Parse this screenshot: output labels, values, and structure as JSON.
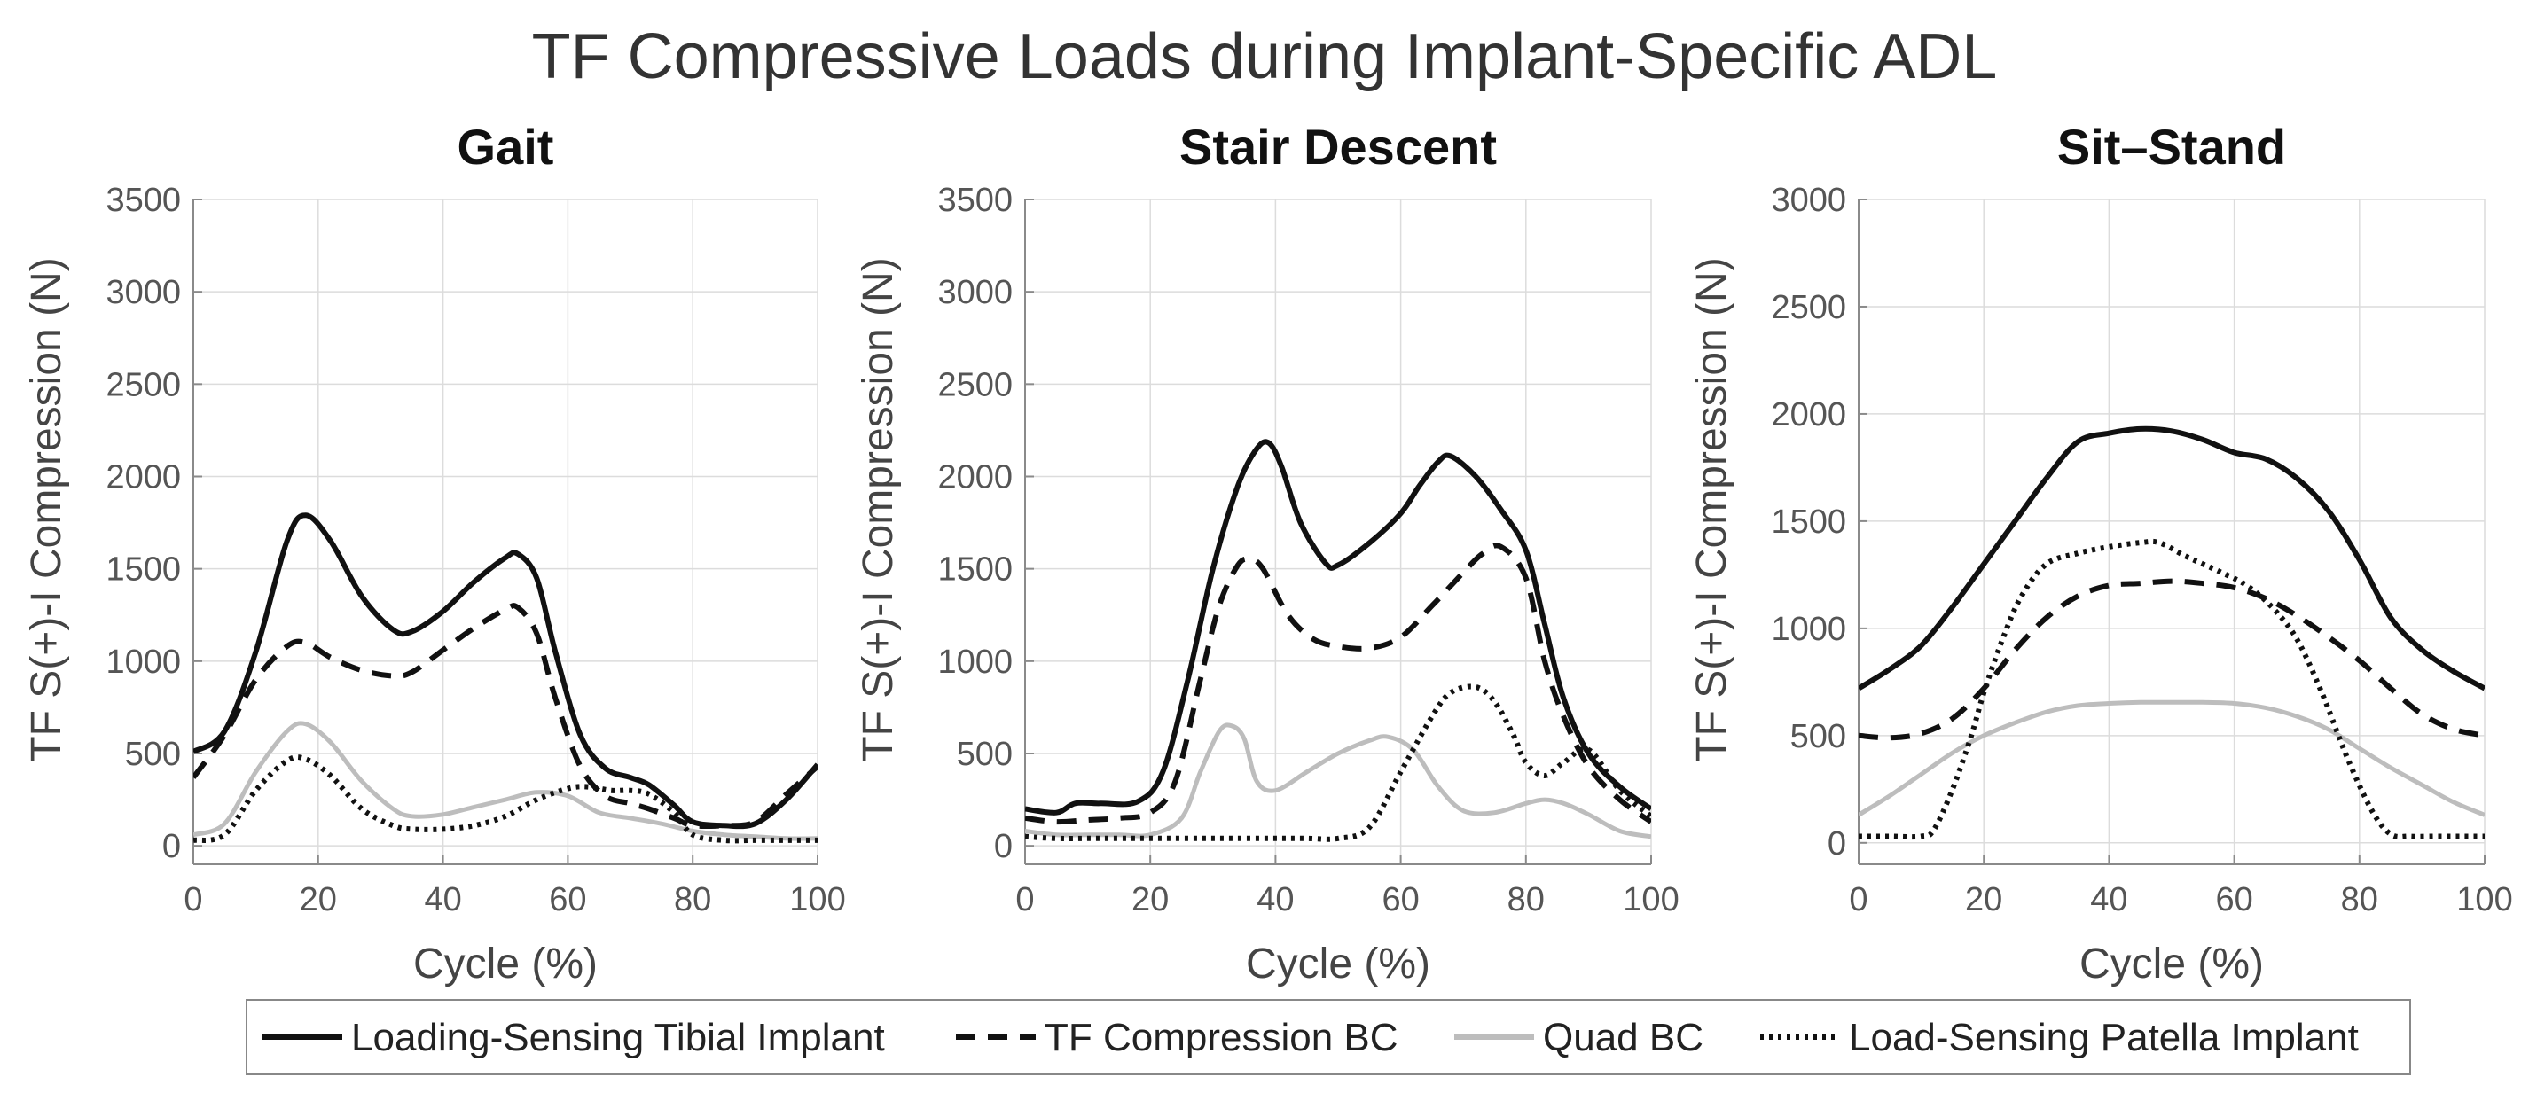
{
  "title": "TF Compressive Loads during Implant-Specific ADL",
  "legend": [
    {
      "label": "Loading-Sensing Tibial Implant",
      "style": "solid",
      "color": "#111111"
    },
    {
      "label": "TF Compression BC",
      "style": "dashed",
      "color": "#111111"
    },
    {
      "label": "Quad BC",
      "style": "solid",
      "color": "#bdbdbd"
    },
    {
      "label": "Load-Sensing Patella Implant",
      "style": "dotted",
      "color": "#111111"
    }
  ],
  "chart_data": [
    {
      "type": "line",
      "title": "Gait",
      "xlabel": "Cycle (%)",
      "ylabel": "TF S(+)-I Compression (N)",
      "xlim": [
        0,
        100
      ],
      "ylim": [
        -100,
        3500
      ],
      "xticks": [
        0,
        20,
        40,
        60,
        80,
        100
      ],
      "yticks": [
        0,
        500,
        1000,
        1500,
        2000,
        2500,
        3000,
        3500
      ],
      "grid": true,
      "series": [
        {
          "name": "Loading-Sensing Tibial Implant",
          "x": [
            0,
            5,
            10,
            15,
            18,
            22,
            27,
            32,
            35,
            40,
            45,
            50,
            52,
            55,
            58,
            62,
            66,
            70,
            73,
            77,
            80,
            85,
            90,
            95,
            100
          ],
          "y": [
            510,
            620,
            1050,
            1650,
            1790,
            1650,
            1350,
            1170,
            1160,
            1270,
            1430,
            1560,
            1580,
            1450,
            1050,
            600,
            420,
            370,
            330,
            220,
            130,
            110,
            120,
            250,
            440
          ]
        },
        {
          "name": "TF Compression BC",
          "x": [
            0,
            5,
            10,
            15,
            18,
            22,
            27,
            32,
            35,
            40,
            45,
            50,
            52,
            55,
            58,
            62,
            66,
            70,
            73,
            77,
            80,
            85,
            90,
            95,
            100
          ],
          "y": [
            370,
            600,
            900,
            1080,
            1100,
            1020,
            950,
            920,
            940,
            1060,
            1180,
            1280,
            1290,
            1150,
            800,
            430,
            270,
            230,
            200,
            150,
            110,
            110,
            130,
            280,
            430
          ]
        },
        {
          "name": "Quad BC",
          "x": [
            0,
            5,
            10,
            15,
            18,
            22,
            27,
            32,
            35,
            40,
            45,
            50,
            55,
            60,
            65,
            70,
            75,
            80,
            85,
            90,
            95,
            100
          ],
          "y": [
            60,
            120,
            400,
            620,
            660,
            560,
            350,
            200,
            160,
            170,
            210,
            250,
            290,
            270,
            180,
            150,
            120,
            80,
            60,
            50,
            40,
            40
          ]
        },
        {
          "name": "Load-Sensing Patella Implant",
          "x": [
            0,
            5,
            10,
            15,
            18,
            22,
            27,
            32,
            35,
            40,
            45,
            50,
            55,
            60,
            63,
            67,
            70,
            73,
            77,
            80,
            85,
            90,
            95,
            100
          ],
          "y": [
            30,
            60,
            300,
            460,
            470,
            380,
            200,
            110,
            90,
            90,
            110,
            160,
            250,
            310,
            320,
            300,
            300,
            280,
            180,
            60,
            30,
            30,
            30,
            30
          ]
        }
      ]
    },
    {
      "type": "line",
      "title": "Stair Descent",
      "xlabel": "Cycle (%)",
      "ylabel": "TF S(+)-I Compression (N)",
      "xlim": [
        0,
        100
      ],
      "ylim": [
        -100,
        3500
      ],
      "xticks": [
        0,
        20,
        40,
        60,
        80,
        100
      ],
      "yticks": [
        0,
        500,
        1000,
        1500,
        2000,
        2500,
        3000,
        3500
      ],
      "grid": true,
      "series": [
        {
          "name": "Loading-Sensing Tibial Implant",
          "x": [
            0,
            5,
            8,
            12,
            18,
            22,
            26,
            30,
            34,
            37,
            39,
            41,
            44,
            48,
            50,
            55,
            60,
            63,
            66,
            68,
            72,
            76,
            80,
            83,
            86,
            90,
            95,
            100
          ],
          "y": [
            200,
            180,
            230,
            230,
            240,
            400,
            900,
            1500,
            1950,
            2150,
            2180,
            2050,
            1750,
            1530,
            1520,
            1640,
            1800,
            1950,
            2080,
            2110,
            2000,
            1820,
            1600,
            1200,
            800,
            500,
            320,
            200
          ]
        },
        {
          "name": "TF Compression BC",
          "x": [
            0,
            5,
            10,
            15,
            20,
            24,
            28,
            31,
            34,
            36,
            38,
            42,
            46,
            50,
            55,
            60,
            65,
            70,
            73,
            76,
            80,
            83,
            86,
            90,
            95,
            100
          ],
          "y": [
            150,
            130,
            140,
            150,
            180,
            350,
            900,
            1300,
            1520,
            1550,
            1500,
            1250,
            1120,
            1080,
            1070,
            1130,
            1300,
            1480,
            1580,
            1620,
            1450,
            1000,
            700,
            430,
            250,
            130
          ]
        },
        {
          "name": "Quad BC",
          "x": [
            0,
            5,
            10,
            15,
            20,
            25,
            28,
            31,
            33,
            35,
            37,
            40,
            45,
            50,
            55,
            58,
            62,
            66,
            70,
            75,
            80,
            83,
            86,
            90,
            95,
            100
          ],
          "y": [
            80,
            60,
            60,
            60,
            60,
            150,
            400,
            620,
            650,
            580,
            350,
            300,
            400,
            500,
            570,
            590,
            520,
            320,
            190,
            180,
            230,
            250,
            230,
            170,
            80,
            50
          ]
        },
        {
          "name": "Load-Sensing Patella Implant",
          "x": [
            0,
            5,
            10,
            15,
            20,
            25,
            30,
            35,
            40,
            45,
            50,
            55,
            60,
            65,
            68,
            72,
            75,
            78,
            80,
            83,
            86,
            90,
            95,
            100
          ],
          "y": [
            50,
            40,
            40,
            40,
            40,
            40,
            40,
            40,
            40,
            40,
            40,
            100,
            400,
            700,
            830,
            860,
            780,
            600,
            450,
            380,
            450,
            520,
            300,
            160
          ]
        }
      ]
    },
    {
      "type": "line",
      "title": "Sit–Stand",
      "xlabel": "Cycle (%)",
      "ylabel": "TF S(+)-I Compression (N)",
      "xlim": [
        0,
        100
      ],
      "ylim": [
        -100,
        3000
      ],
      "xticks": [
        0,
        20,
        40,
        60,
        80,
        100
      ],
      "yticks": [
        0,
        500,
        1000,
        1500,
        2000,
        2500,
        3000
      ],
      "grid": true,
      "series": [
        {
          "name": "Loading-Sensing Tibial Implant",
          "x": [
            0,
            5,
            10,
            15,
            20,
            25,
            30,
            35,
            40,
            45,
            50,
            55,
            60,
            65,
            70,
            75,
            80,
            85,
            90,
            95,
            100
          ],
          "y": [
            720,
            810,
            920,
            1100,
            1300,
            1500,
            1700,
            1870,
            1910,
            1930,
            1920,
            1880,
            1820,
            1790,
            1700,
            1550,
            1320,
            1050,
            900,
            800,
            720
          ]
        },
        {
          "name": "TF Compression BC",
          "x": [
            0,
            5,
            10,
            15,
            20,
            25,
            30,
            35,
            40,
            45,
            50,
            55,
            60,
            65,
            70,
            75,
            80,
            85,
            90,
            95,
            100
          ],
          "y": [
            500,
            490,
            510,
            580,
            720,
            900,
            1050,
            1150,
            1200,
            1210,
            1220,
            1210,
            1190,
            1140,
            1060,
            960,
            850,
            720,
            600,
            530,
            500
          ]
        },
        {
          "name": "Quad BC",
          "x": [
            0,
            5,
            10,
            15,
            20,
            25,
            30,
            35,
            40,
            45,
            50,
            55,
            60,
            65,
            70,
            75,
            80,
            85,
            90,
            95,
            100
          ],
          "y": [
            130,
            220,
            320,
            420,
            500,
            560,
            610,
            640,
            650,
            655,
            655,
            655,
            650,
            630,
            590,
            530,
            440,
            350,
            270,
            190,
            130
          ]
        },
        {
          "name": "Load-Sensing Patella Implant",
          "x": [
            0,
            5,
            10,
            12,
            15,
            18,
            20,
            23,
            26,
            30,
            35,
            40,
            45,
            48,
            52,
            55,
            58,
            62,
            66,
            70,
            74,
            78,
            82,
            85,
            88,
            92,
            96,
            100
          ],
          "y": [
            30,
            30,
            30,
            60,
            250,
            500,
            700,
            950,
            1150,
            1300,
            1350,
            1380,
            1400,
            1400,
            1340,
            1300,
            1260,
            1200,
            1100,
            950,
            700,
            400,
            150,
            40,
            30,
            30,
            30,
            30
          ]
        }
      ]
    }
  ]
}
